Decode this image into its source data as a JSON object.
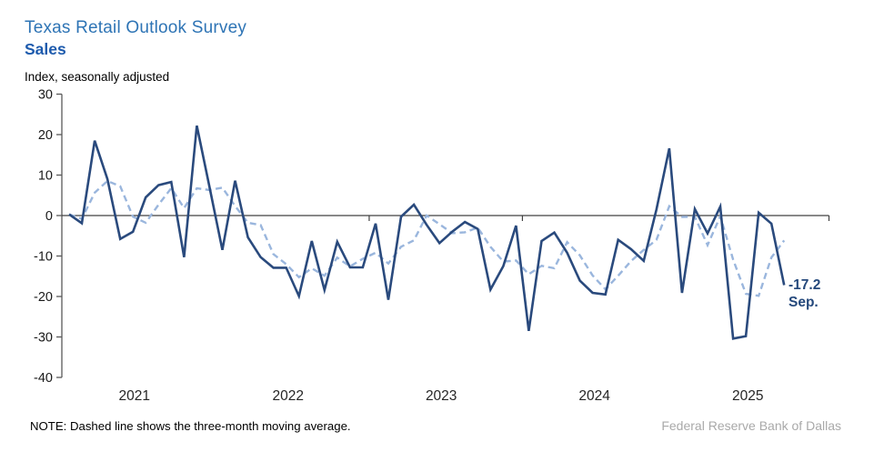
{
  "chart_data": {
    "type": "line",
    "title": "Texas Retail Outlook Survey",
    "subtitle": "Sales",
    "ylabel": "Index, seasonally adjusted",
    "ylim": [
      -40,
      30
    ],
    "ytick_interval": 10,
    "ytick_labels": [
      "30",
      "20",
      "10",
      "0",
      "-10",
      "-20",
      "-30",
      "-40"
    ],
    "xtick_labels": [
      "2021",
      "2022",
      "2023",
      "2024",
      "2025"
    ],
    "x_start": "2021-01",
    "x_end": "2025-09",
    "frequency": "monthly",
    "grid": "off",
    "legend": "none",
    "series": [
      {
        "name": "Sales index (monthly)",
        "style": "solid",
        "color": "#2a4a7d",
        "values": [
          0.3,
          -1.9,
          18.5,
          9.0,
          -5.8,
          -4.0,
          4.5,
          7.5,
          8.3,
          -10.3,
          22.2,
          7.0,
          -8.5,
          8.6,
          -5.4,
          -10.3,
          -12.9,
          -12.9,
          -19.9,
          -6.3,
          -18.4,
          -6.5,
          -12.8,
          -12.8,
          -2.0,
          -20.8,
          -0.3,
          2.7,
          -2.3,
          -6.8,
          -4.0,
          -1.6,
          -3.3,
          -18.3,
          -12.5,
          -2.5,
          -28.5,
          -6.3,
          -4.2,
          -9.2,
          -16.1,
          -19.1,
          -19.5,
          -6.0,
          -8.3,
          -11.2,
          1.5,
          16.6,
          -19.1,
          1.6,
          -4.4,
          2.2,
          -30.4,
          -29.8,
          0.7,
          -2.0,
          -17.2
        ]
      },
      {
        "name": "Three-month moving average",
        "style": "dashed",
        "color": "#9ab6dd",
        "derived": "trailing-3-month-average-of-series-0"
      }
    ],
    "annotation": {
      "value": "-17.2",
      "label": "Sep."
    }
  },
  "footer": {
    "note": "NOTE: Dashed line shows the three-month moving average.",
    "source": "Federal Reserve Bank of Dallas"
  },
  "colors": {
    "title_blue": "#2e74b5",
    "subtitle_blue": "#1e5bad",
    "line_navy": "#2a4a7d",
    "line_light_blue": "#9ab6dd",
    "annotation_navy": "#25497c",
    "axis_gray": "#595959",
    "source_gray": "#a9a9a9"
  }
}
